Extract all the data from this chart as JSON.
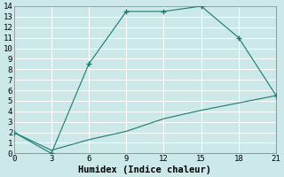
{
  "line1_x": [
    0,
    3,
    6,
    9,
    12,
    15,
    18,
    21
  ],
  "line1_y": [
    2,
    0,
    8.5,
    13.5,
    13.5,
    14,
    11,
    5.5
  ],
  "line2_x": [
    0,
    3,
    6,
    9,
    12,
    15,
    18,
    21
  ],
  "line2_y": [
    2,
    0.3,
    1.3,
    2.1,
    3.3,
    4.1,
    4.8,
    5.5
  ],
  "line_color": "#1a7a6e",
  "marker": "+",
  "xlabel": "Humidex (Indice chaleur)",
  "xlim": [
    0,
    21
  ],
  "ylim": [
    0,
    14
  ],
  "xticks": [
    0,
    3,
    6,
    9,
    12,
    15,
    18,
    21
  ],
  "yticks": [
    0,
    1,
    2,
    3,
    4,
    5,
    6,
    7,
    8,
    9,
    10,
    11,
    12,
    13,
    14
  ],
  "bg_color": "#cce8e8",
  "grid_color": "#b8d8d8",
  "tick_fontsize": 6.5,
  "xlabel_fontsize": 7.5
}
